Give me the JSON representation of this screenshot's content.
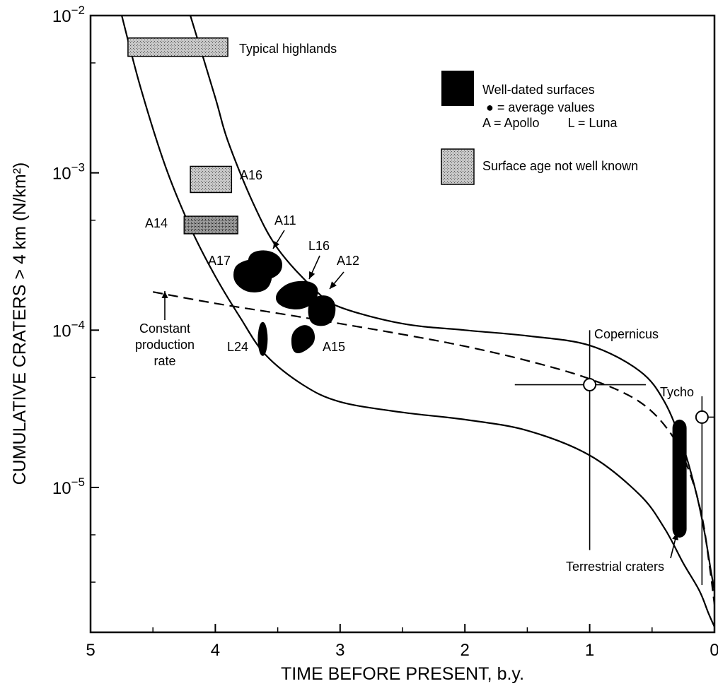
{
  "chart_data": {
    "type": "line",
    "title": "",
    "xlabel": "TIME BEFORE PRESENT, b.y.",
    "ylabel": "CUMULATIVE CRATERS > 4 km (N/km²)",
    "x_axis": {
      "reversed": true,
      "range": [
        5,
        0
      ],
      "ticks": [
        "5",
        "4",
        "3",
        "2",
        "1",
        "0"
      ]
    },
    "y_axis": {
      "scale": "log",
      "range": [
        1.2e-06,
        0.01
      ],
      "ticks": [
        {
          "base": "10",
          "exp": "−2",
          "value": 0.01
        },
        {
          "base": "10",
          "exp": "−3",
          "value": 0.001
        },
        {
          "base": "10",
          "exp": "−4",
          "value": 0.0001
        },
        {
          "base": "10",
          "exp": "−5",
          "value": 1e-05
        }
      ]
    },
    "grid": false,
    "envelope": {
      "upper": {
        "x": [
          4.2,
          4.0,
          3.9,
          3.7,
          3.5,
          3.2,
          3.0,
          2.5,
          2.0,
          1.5,
          1.0,
          0.6,
          0.4,
          0.25,
          0.15,
          0.08,
          0.03,
          0.0
        ],
        "y": [
          0.01,
          0.003,
          0.0016,
          0.00065,
          0.00033,
          0.00018,
          0.00014,
          0.00011,
          0.0001,
          9.2e-05,
          8e-05,
          5.5e-05,
          3.5e-05,
          1.8e-05,
          9.5e-06,
          5.2e-06,
          3e-06,
          2.2e-06
        ]
      },
      "lower": {
        "x": [
          4.75,
          4.6,
          4.4,
          4.2,
          4.0,
          3.8,
          3.6,
          3.3,
          3.0,
          2.5,
          2.0,
          1.5,
          1.0,
          0.6,
          0.4,
          0.25,
          0.12,
          0.05,
          0.0
        ],
        "y": [
          0.01,
          0.0035,
          0.0011,
          0.00045,
          0.00022,
          0.00012,
          7e-05,
          4.5e-05,
          3.5e-05,
          3e-05,
          2.7e-05,
          2.3e-05,
          1.6e-05,
          9e-06,
          5.5e-06,
          3.3e-06,
          2.2e-06,
          1.6e-06,
          1.3e-06
        ]
      }
    },
    "constant_production_rate": {
      "x": [
        4.5,
        4.0,
        3.5,
        3.0,
        2.5,
        2.0,
        1.5,
        1.0,
        0.6,
        0.35,
        0.2,
        0.1,
        0.04,
        0.0
      ],
      "y": [
        0.000175,
        0.000148,
        0.000128,
        0.00011,
        9.4e-05,
        7.9e-05,
        6.4e-05,
        4.9e-05,
        3.5e-05,
        2.2e-05,
        1.25e-05,
        6.5e-06,
        3.2e-06,
        1.8e-06
      ]
    },
    "surface_age_not_well_known": [
      {
        "label": "Typical highlands",
        "x": [
          4.7,
          3.9
        ],
        "y": [
          0.0055,
          0.0072
        ]
      },
      {
        "label": "A16",
        "x": [
          4.2,
          3.87
        ],
        "y": [
          0.00075,
          0.0011
        ]
      },
      {
        "label": "A14",
        "x": [
          4.25,
          3.82
        ],
        "y": [
          0.00041,
          0.00053
        ]
      }
    ],
    "well_dated_surfaces": [
      {
        "label": "A11",
        "x": 3.6,
        "y": 0.00026
      },
      {
        "label": "A17",
        "x": 3.7,
        "y": 0.00023
      },
      {
        "label": "L16",
        "x": 3.35,
        "y": 0.000165
      },
      {
        "label": "A12",
        "x": 3.15,
        "y": 0.000135
      },
      {
        "label": "A15",
        "x": 3.3,
        "y": 8.8e-05
      },
      {
        "label": "L24",
        "x": 3.62,
        "y": 8.8e-05
      },
      {
        "label": "Terrestrial craters",
        "x": 0.28,
        "y": [
          4.8e-06,
          2.7e-05
        ]
      }
    ],
    "average_values": [
      {
        "label": "Copernicus",
        "x": 1.0,
        "y": 4.5e-05,
        "x_range": [
          1.6,
          0.55
        ],
        "y_range": [
          4e-06,
          0.0001
        ]
      },
      {
        "label": "Tycho",
        "x": 0.1,
        "y": 2.8e-05,
        "x_range": [
          0.1,
          0.0
        ],
        "y_range": [
          2.4e-06,
          3.8e-05
        ]
      }
    ],
    "annotations": {
      "constant_production_rate_label": [
        "Constant",
        "production",
        "rate"
      ]
    },
    "legend": {
      "placement": "top-right",
      "entries": [
        {
          "lines": [
            "Well-dated surfaces",
            "● = average values",
            "A = Apollo        L = Luna"
          ],
          "style": "solid-black"
        },
        {
          "lines": [
            "Surface age not well known"
          ],
          "style": "stippled"
        }
      ]
    }
  }
}
